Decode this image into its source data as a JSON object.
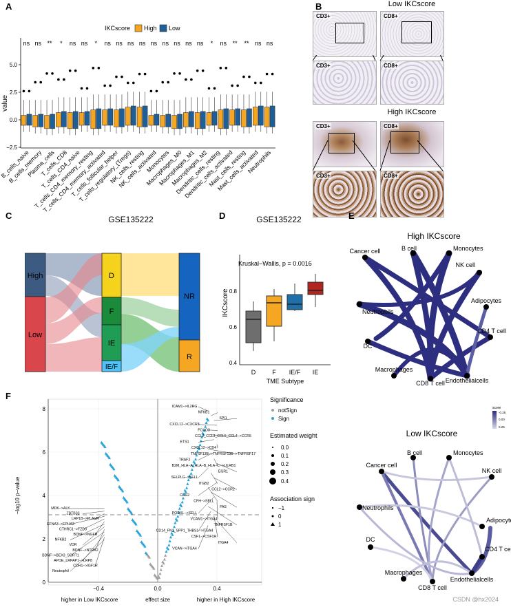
{
  "panels": {
    "A": {
      "letter": "A",
      "legend_title": "IKCscore",
      "legend_items": [
        "High",
        "Low"
      ],
      "ylabel": "value",
      "yticks": [
        "5.0",
        "2.5",
        "0.0",
        "−2.5"
      ],
      "significance": [
        "ns",
        "ns",
        "**",
        "*",
        "ns",
        "ns",
        "*",
        "ns",
        "ns",
        "ns",
        "ns",
        "ns",
        "ns",
        "ns",
        "ns",
        "ns",
        "*",
        "ns",
        "**",
        "**",
        "ns",
        "ns"
      ],
      "colors": {
        "high": "#F5A623",
        "low": "#1F5F97"
      }
    },
    "B": {
      "letter": "B",
      "low_title": "Low  IKCscore",
      "high_title": "High  IKCscore",
      "cd3": "CD3+",
      "cd8": "CD8+"
    },
    "C": {
      "letter": "C",
      "title": "GSE135222",
      "left_nodes": [
        "High",
        "Low"
      ],
      "mid_nodes": [
        "D",
        "F",
        "IE",
        "IE/F"
      ],
      "right_nodes": [
        "NR",
        "R"
      ]
    },
    "D": {
      "letter": "D",
      "title": "GSE135222",
      "test": "Kruskal−Wallis, p = 0.0016",
      "ylabel": "IKCscore",
      "xlabel": "TME Subtype",
      "yticks": [
        "0.8",
        "0.6",
        "0.4"
      ]
    },
    "E": {
      "letter": "E",
      "high_title": "High IKCscore",
      "low_title": "Low IKCscore",
      "cells": [
        "B cell",
        "Monocytes",
        "NK cell",
        "Adipocytes",
        "CD4 T cell",
        "Endothelialcells",
        "CD8 T cell",
        "Macrophages",
        "DC",
        "Neutrophils",
        "Cancer cell"
      ],
      "scale_title": "score",
      "scale_ticks": [
        "0.25",
        "0.00",
        "-0.25"
      ]
    },
    "F": {
      "letter": "F",
      "ylabel": "−log10 p−value",
      "yticks": [
        "8",
        "6",
        "4",
        "2",
        "0"
      ],
      "xticks": [
        "−0.4",
        "0.0",
        "0.4"
      ],
      "xlabel_left": "higher in Low IKCscore",
      "xlabel_mid": "effect size",
      "xlabel_right": "higher in High IKCscore",
      "legend_sig_title": "Significance",
      "legend_sig_items": [
        "notSign",
        "Sign"
      ],
      "legend_weight_title": "Estimated weight",
      "legend_weight_items": [
        "0.0",
        "0.1",
        "0.2",
        "0.3",
        "0.4"
      ],
      "legend_assoc_title": "Association sign",
      "legend_assoc_items": [
        "−1",
        "0",
        "1"
      ],
      "labels_right": [
        "ICAM1−>IL2RG",
        "NFKB1",
        "SPI1",
        "CXCL12−>CXCR3",
        "FOXO3",
        "CCL2_CCL3_CCL5_CCL4−>CCR5",
        "ETS1",
        "CXCL12−>CD4",
        "TNFSF13B−>TNFRSF13B−>TNFRSF17",
        "TRAF2",
        "B2M_HLA−A_HLA−B_HLA−C−>LILRB1",
        "EGR1",
        "SELPLG−>SELL",
        "ITGB2",
        "CCL2−>CCR2",
        "CCR2",
        "CFH−>SELL",
        "FAS",
        "PODXL−>SELL",
        "VCAM1−>ITGA4",
        "TNFRSF1B",
        "CD14_FN1_SPP1_THBS1−>ITGA4",
        "CSF1−>CSF1R",
        "ITGA4",
        "VCAN−>ITGA4"
      ],
      "labels_left": [
        "MDK−>ALK",
        "ZBTB33",
        "LRP1B−>PLAUR",
        "EFNA3−>EPHA2",
        "CTHRC1−>FZD3",
        "BDNF−>NGFR",
        "NFKB2",
        "VDR",
        "BDNF−>NTRK2",
        "BDNF−>BEX3_SORT1",
        "APOE_LRPAP1−>LRP8",
        "CDH1−>IGF1R",
        "Neutrophil"
      ],
      "colors": {
        "sign": "#29A3D6",
        "notsign": "#9E9E9E"
      }
    }
  },
  "watermark": "CSDN @hx2024"
}
